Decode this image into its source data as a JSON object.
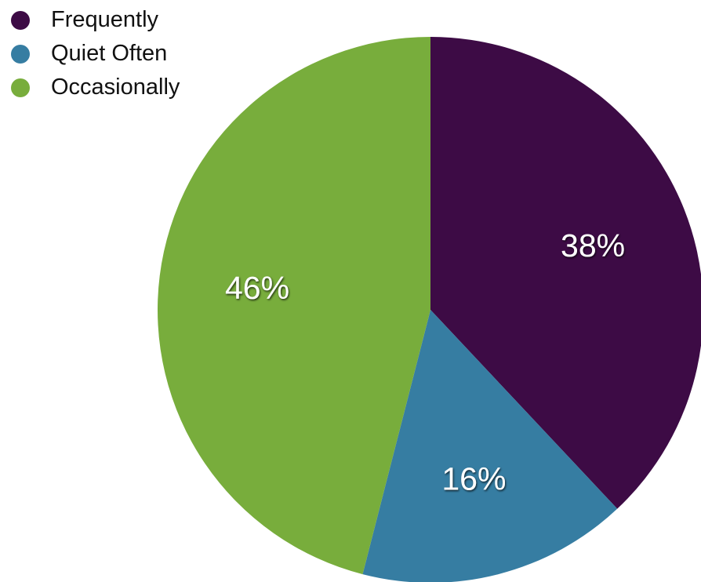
{
  "chart_data": {
    "type": "pie",
    "categories": [
      "Frequently",
      "Quiet Often",
      "Occasionally"
    ],
    "values": [
      38,
      16,
      46
    ],
    "value_labels": [
      "38%",
      "16%",
      "46%"
    ],
    "colors": [
      "#3d0b45",
      "#367da2",
      "#78ad3c"
    ],
    "start_angle_degrees": 0,
    "direction": "clockwise",
    "legend_position": "top-left"
  }
}
